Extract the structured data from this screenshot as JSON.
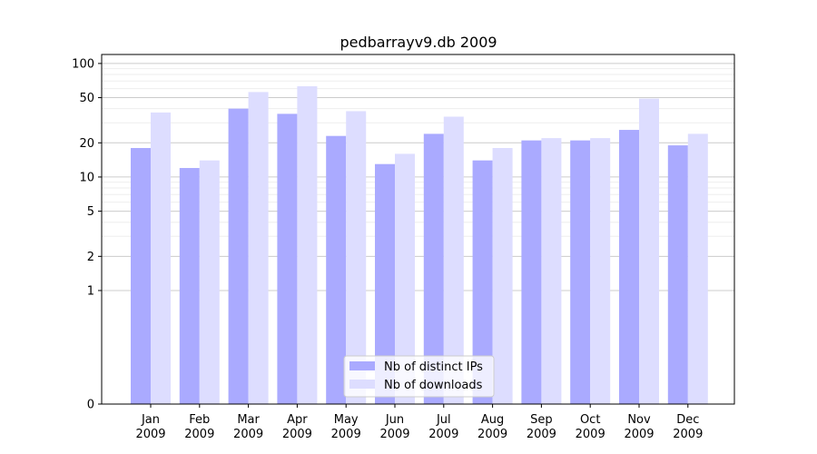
{
  "chart_data": {
    "type": "bar",
    "title": "pedbarrayv9.db 2009",
    "xlabel": "",
    "ylabel": "",
    "yscale": "symlog",
    "ylim": [
      0,
      120
    ],
    "yticks": [
      0,
      1,
      2,
      5,
      10,
      20,
      50,
      100
    ],
    "categories": [
      [
        "Jan",
        "2009"
      ],
      [
        "Feb",
        "2009"
      ],
      [
        "Mar",
        "2009"
      ],
      [
        "Apr",
        "2009"
      ],
      [
        "May",
        "2009"
      ],
      [
        "Jun",
        "2009"
      ],
      [
        "Jul",
        "2009"
      ],
      [
        "Aug",
        "2009"
      ],
      [
        "Sep",
        "2009"
      ],
      [
        "Oct",
        "2009"
      ],
      [
        "Nov",
        "2009"
      ],
      [
        "Dec",
        "2009"
      ]
    ],
    "series": [
      {
        "name": "Nb of distinct IPs",
        "color": "#aaaaff",
        "values": [
          18,
          12,
          40,
          36,
          23,
          13,
          24,
          14,
          21,
          21,
          26,
          19
        ]
      },
      {
        "name": "Nb of downloads",
        "color": "#ddddff",
        "values": [
          37,
          14,
          56,
          63,
          38,
          16,
          34,
          18,
          22,
          22,
          49,
          24
        ]
      }
    ],
    "legend_position": "bottom-center",
    "grid": true
  }
}
